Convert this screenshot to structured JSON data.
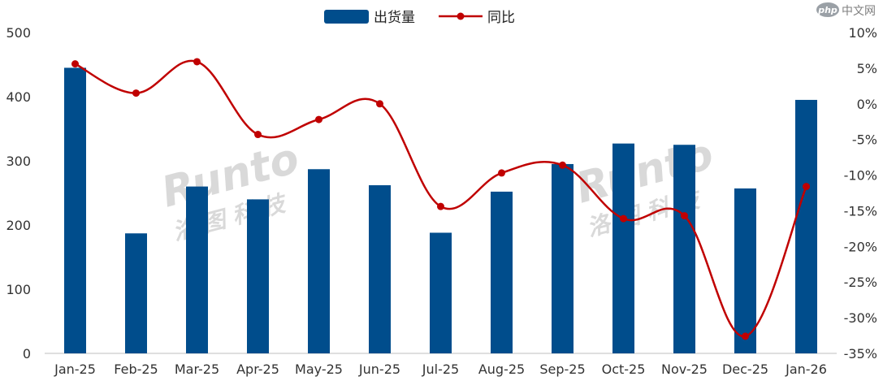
{
  "chart_data": {
    "type": "bar",
    "categories": [
      "Jan-25",
      "Feb-25",
      "Mar-25",
      "Apr-25",
      "May-25",
      "Jun-25",
      "Jul-25",
      "Aug-25",
      "Sep-25",
      "Oct-25",
      "Nov-25",
      "Dec-25",
      "Jan-26"
    ],
    "series": [
      {
        "name": "出货量",
        "type": "bar",
        "axis": "left",
        "color": "#004d8c",
        "values": [
          445,
          187,
          260,
          240,
          287,
          262,
          188,
          252,
          295,
          327,
          325,
          257,
          395
        ]
      },
      {
        "name": "同比",
        "type": "line",
        "axis": "right",
        "color": "#c00000",
        "smooth": true,
        "values": [
          5.6,
          1.5,
          5.9,
          -4.3,
          -2.2,
          0.0,
          -14.4,
          -9.7,
          -8.6,
          -16.1,
          -15.7,
          -32.6,
          -11.6
        ]
      }
    ],
    "y_left": {
      "min": 0,
      "max": 500,
      "ticks": [
        0,
        100,
        200,
        300,
        400,
        500
      ],
      "tick_labels": [
        "0",
        "100",
        "200",
        "300",
        "400",
        "500"
      ]
    },
    "y_right": {
      "min": -35,
      "max": 10,
      "ticks": [
        10,
        5,
        0,
        -5,
        -10,
        -15,
        -20,
        -25,
        -30,
        -35
      ],
      "tick_labels": [
        "10%",
        "5%",
        "0%",
        "-5%",
        "-10%",
        "-15%",
        "-20%",
        "-25%",
        "-30%",
        "-35%"
      ]
    },
    "legend": {
      "position": "top-center"
    },
    "grid": false,
    "title": "",
    "xlabel": "",
    "ylabel": ""
  },
  "watermarks": {
    "brand_latin": "Runto",
    "brand_cjk": "洛 图 科 技",
    "corner_badge": "php",
    "corner_text": "中文网"
  }
}
